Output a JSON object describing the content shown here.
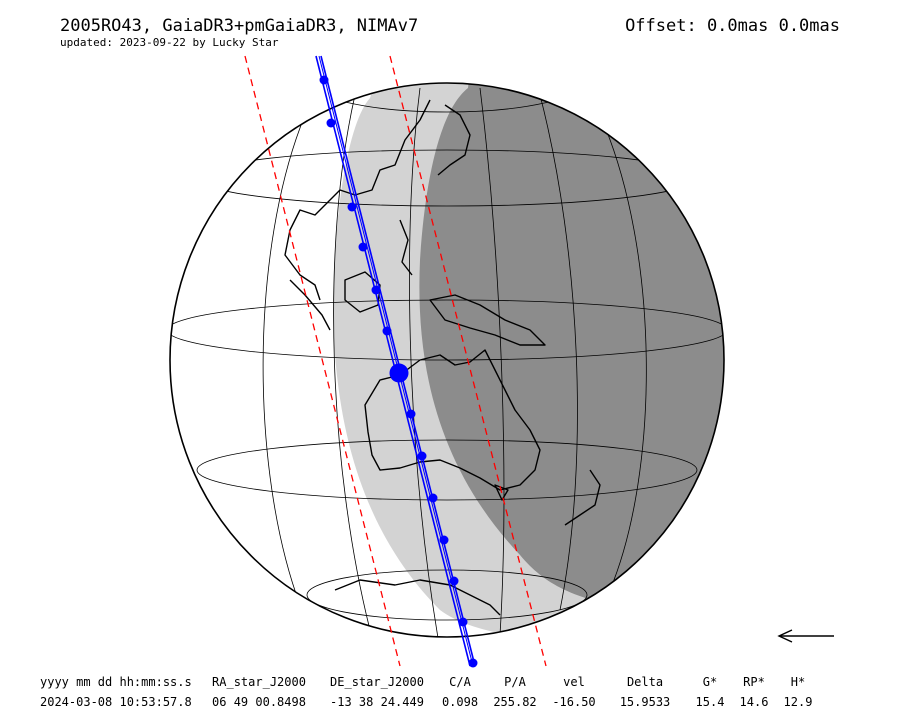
{
  "header": {
    "title": "2005RO43, GaiaDR3+pmGaiaDR3, NIMAv7",
    "updated": "updated: 2023-09-22 by Lucky Star",
    "offset": "Offset: 0.0mas 0.0mas"
  },
  "map": {
    "colors": {
      "night": "#8c8c8c",
      "twilight": "#d3d3d3",
      "path": "#0000ff",
      "limits": "#ff0000",
      "coast": "#000000"
    },
    "direction_icon": "arrow-left-icon"
  },
  "table": {
    "headers": [
      "yyyy mm dd hh:mm:ss.s",
      "RA_star_J2000",
      "DE_star_J2000",
      "C/A",
      "P/A",
      "vel",
      "Delta",
      "G*",
      "RP*",
      "H*"
    ],
    "values": [
      "2024-03-08 10:53:57.8",
      "06 49 00.8498",
      "-13 38 24.449",
      "0.098",
      "255.82",
      "-16.50",
      "15.9533",
      "15.4",
      "14.6",
      "12.9"
    ]
  }
}
